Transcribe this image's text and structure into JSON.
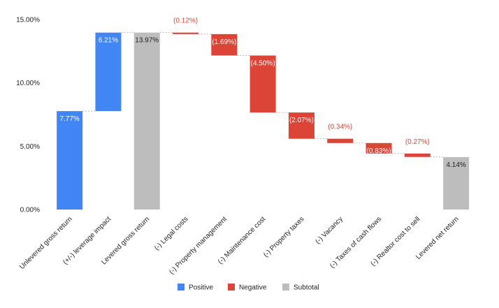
{
  "chart_data": {
    "type": "bar",
    "subtype": "waterfall",
    "title": "",
    "xlabel": "",
    "ylabel": "",
    "ylim": [
      0,
      15
    ],
    "yticks": [
      "0.00%",
      "5.00%",
      "10.00%",
      "15.00%"
    ],
    "ytick_values": [
      0,
      5,
      10,
      15
    ],
    "grid": false,
    "legend_position": "bottom",
    "colors": {
      "positive": "#4285F4",
      "negative": "#DB4437",
      "subtotal": "#BDBDBD"
    },
    "legend": [
      {
        "key": "positive",
        "label": "Positive"
      },
      {
        "key": "negative",
        "label": "Negative"
      },
      {
        "key": "subtotal",
        "label": "Subtotal"
      }
    ],
    "bars": [
      {
        "category": "Unlevered gross return",
        "kind": "positive",
        "start": 0,
        "end": 7.77,
        "label": "7.77%"
      },
      {
        "category": "(+/-) leverage impact",
        "kind": "positive",
        "start": 7.77,
        "end": 13.97,
        "label": "6.21%"
      },
      {
        "category": "Levered gross return",
        "kind": "subtotal",
        "start": 0,
        "end": 13.97,
        "label": "13.97%"
      },
      {
        "category": "(-) Legal costs",
        "kind": "negative",
        "start": 13.97,
        "end": 13.85,
        "label": "(0.12%)"
      },
      {
        "category": "(-) Property management",
        "kind": "negative",
        "start": 13.85,
        "end": 12.16,
        "label": "(1.69%)"
      },
      {
        "category": "(-) Maintenance cost",
        "kind": "negative",
        "start": 12.16,
        "end": 7.66,
        "label": "(4.50%)"
      },
      {
        "category": "(-) Property taxes",
        "kind": "negative",
        "start": 7.66,
        "end": 5.59,
        "label": "(2.07%)"
      },
      {
        "category": "(-) Vacancy",
        "kind": "negative",
        "start": 5.59,
        "end": 5.25,
        "label": "(0.34%)"
      },
      {
        "category": "(-) Taxes of cash flows",
        "kind": "negative",
        "start": 5.25,
        "end": 4.42,
        "label": "(0.83%)"
      },
      {
        "category": "(-) Realtor cost to sell",
        "kind": "negative",
        "start": 4.42,
        "end": 4.15,
        "label": "(0.27%)"
      },
      {
        "category": "Levered net return",
        "kind": "subtotal",
        "start": 0,
        "end": 4.14,
        "label": "4.14%"
      }
    ]
  }
}
